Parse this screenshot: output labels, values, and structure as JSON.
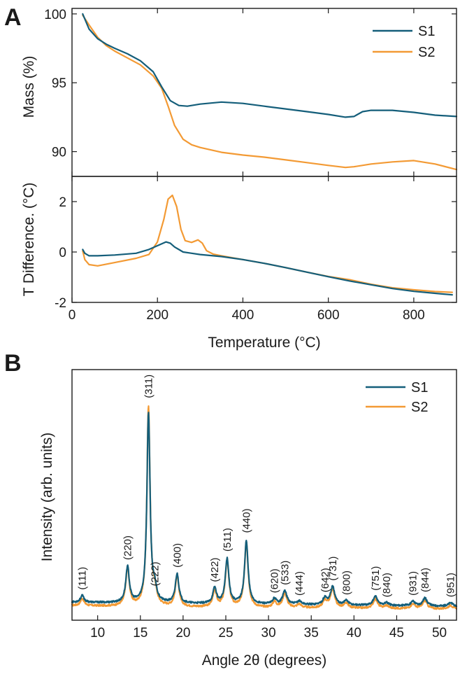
{
  "colors": {
    "S1": "#145e7a",
    "S2": "#f39a34",
    "axis": "#1a1a1a"
  },
  "chart_data": [
    {
      "panel": "A",
      "type": "line",
      "title": "",
      "xlabel": "",
      "ylabel": "Mass (%)",
      "xlim": [
        0,
        900
      ],
      "ylim": [
        88.2,
        100.4
      ],
      "xticks": [
        0,
        200,
        400,
        600,
        800
      ],
      "yticks": [
        90,
        95,
        100
      ],
      "ytick_labels": [
        "90",
        "95",
        "100"
      ],
      "legend": {
        "position": "top-right",
        "entries": [
          "S1",
          "S2"
        ]
      },
      "series": [
        {
          "name": "S1",
          "color": "#145e7a",
          "x": [
            25,
            40,
            60,
            80,
            100,
            130,
            160,
            190,
            210,
            230,
            250,
            270,
            300,
            350,
            400,
            450,
            500,
            550,
            600,
            640,
            660,
            680,
            700,
            750,
            800,
            850,
            900
          ],
          "y": [
            100,
            98.9,
            98.2,
            97.8,
            97.5,
            97.1,
            96.6,
            95.8,
            94.7,
            93.7,
            93.35,
            93.3,
            93.45,
            93.6,
            93.5,
            93.3,
            93.1,
            92.9,
            92.7,
            92.5,
            92.55,
            92.9,
            93.0,
            93.0,
            92.85,
            92.65,
            92.55
          ]
        },
        {
          "name": "S2",
          "color": "#f39a34",
          "x": [
            25,
            40,
            60,
            80,
            100,
            130,
            160,
            190,
            210,
            225,
            240,
            260,
            280,
            300,
            350,
            400,
            450,
            500,
            550,
            600,
            640,
            660,
            700,
            750,
            800,
            850,
            900
          ],
          "y": [
            99.9,
            99.2,
            98.3,
            97.7,
            97.3,
            96.8,
            96.3,
            95.5,
            94.6,
            93.3,
            91.9,
            90.9,
            90.5,
            90.3,
            89.95,
            89.75,
            89.6,
            89.4,
            89.2,
            89.0,
            88.85,
            88.9,
            89.1,
            89.25,
            89.35,
            89.1,
            88.7
          ]
        }
      ]
    },
    {
      "panel": "A",
      "type": "line",
      "title": "",
      "xlabel": "Temperature (°C)",
      "ylabel": "T Difference. (°C)",
      "xlim": [
        0,
        900
      ],
      "ylim": [
        -2,
        3
      ],
      "xticks": [
        0,
        200,
        400,
        600,
        800
      ],
      "xtick_labels": [
        "0",
        "200",
        "400",
        "600",
        "800"
      ],
      "yticks": [
        -2,
        0,
        2
      ],
      "ytick_labels": [
        "-2",
        "0",
        "2"
      ],
      "series": [
        {
          "name": "S1",
          "color": "#145e7a",
          "x": [
            25,
            30,
            40,
            60,
            100,
            150,
            180,
            200,
            220,
            230,
            240,
            260,
            280,
            300,
            350,
            400,
            450,
            500,
            550,
            600,
            650,
            700,
            750,
            800,
            850,
            890
          ],
          "y": [
            0.1,
            -0.05,
            -0.15,
            -0.15,
            -0.12,
            -0.05,
            0.1,
            0.25,
            0.4,
            0.35,
            0.2,
            0.0,
            -0.05,
            -0.1,
            -0.18,
            -0.3,
            -0.45,
            -0.62,
            -0.8,
            -0.98,
            -1.15,
            -1.3,
            -1.45,
            -1.56,
            -1.64,
            -1.7
          ]
        },
        {
          "name": "S2",
          "color": "#f39a34",
          "x": [
            25,
            30,
            40,
            60,
            100,
            150,
            180,
            200,
            215,
            225,
            235,
            245,
            255,
            265,
            280,
            295,
            305,
            315,
            330,
            350,
            400,
            450,
            500,
            550,
            600,
            650,
            700,
            750,
            800,
            850,
            890
          ],
          "y": [
            0.05,
            -0.3,
            -0.5,
            -0.55,
            -0.42,
            -0.25,
            -0.1,
            0.4,
            1.3,
            2.1,
            2.25,
            1.8,
            0.9,
            0.45,
            0.38,
            0.48,
            0.35,
            0.05,
            -0.08,
            -0.15,
            -0.3,
            -0.45,
            -0.62,
            -0.8,
            -0.97,
            -1.1,
            -1.28,
            -1.42,
            -1.5,
            -1.57,
            -1.6
          ]
        }
      ]
    },
    {
      "panel": "B",
      "type": "line",
      "title": "",
      "xlabel": "Angle 2θ (degrees)",
      "ylabel": "Intensity (arb. units)",
      "xlim": [
        7,
        52
      ],
      "ylim": [
        0,
        1.12
      ],
      "xticks": [
        10,
        15,
        20,
        25,
        30,
        35,
        40,
        45,
        50
      ],
      "xtick_labels": [
        "10",
        "15",
        "20",
        "25",
        "30",
        "35",
        "40",
        "45",
        "50"
      ],
      "legend": {
        "position": "top-right",
        "entries": [
          "S1",
          "S2"
        ]
      },
      "baseline": {
        "S1": [
          [
            7,
            0.08
          ],
          [
            15,
            0.075
          ],
          [
            30,
            0.07
          ],
          [
            52,
            0.062
          ]
        ],
        "S2": [
          [
            7,
            0.065
          ],
          [
            15,
            0.06
          ],
          [
            30,
            0.055
          ],
          [
            52,
            0.05
          ]
        ]
      },
      "peaks": [
        {
          "pos": 8.2,
          "height": 0.03,
          "width": 0.25,
          "label": "(111)"
        },
        {
          "pos": 13.5,
          "height": 0.16,
          "width": 0.25,
          "label": "(220)"
        },
        {
          "pos": 15.95,
          "height": 0.85,
          "width": 0.22,
          "label": "(311)"
        },
        {
          "pos": 16.7,
          "height": 0.05,
          "width": 0.25,
          "label": "(222)"
        },
        {
          "pos": 19.3,
          "height": 0.13,
          "width": 0.25,
          "label": "(400)"
        },
        {
          "pos": 23.7,
          "height": 0.07,
          "width": 0.25,
          "label": "(422)"
        },
        {
          "pos": 25.15,
          "height": 0.2,
          "width": 0.25,
          "label": "(511)"
        },
        {
          "pos": 27.4,
          "height": 0.28,
          "width": 0.25,
          "label": "(440)"
        },
        {
          "pos": 30.7,
          "height": 0.025,
          "width": 0.25,
          "label": "(620)"
        },
        {
          "pos": 31.9,
          "height": 0.06,
          "width": 0.3,
          "label": "(533)"
        },
        {
          "pos": 33.6,
          "height": 0.015,
          "width": 0.3,
          "label": "(444)"
        },
        {
          "pos": 36.6,
          "height": 0.03,
          "width": 0.3,
          "label": "(642)"
        },
        {
          "pos": 37.5,
          "height": 0.08,
          "width": 0.3,
          "label": "(731)"
        },
        {
          "pos": 39.1,
          "height": 0.02,
          "width": 0.3,
          "label": "(800)"
        },
        {
          "pos": 42.5,
          "height": 0.04,
          "width": 0.3,
          "label": "(751)"
        },
        {
          "pos": 43.8,
          "height": 0.012,
          "width": 0.3,
          "label": "(840)"
        },
        {
          "pos": 46.9,
          "height": 0.02,
          "width": 0.3,
          "label": "(931)"
        },
        {
          "pos": 48.3,
          "height": 0.035,
          "width": 0.3,
          "label": "(844)"
        },
        {
          "pos": 51.3,
          "height": 0.015,
          "width": 0.3,
          "label": "(951)"
        }
      ],
      "series_scale": {
        "S1": 1.0,
        "S2": 1.05
      }
    }
  ],
  "panel_labels": {
    "a": "A",
    "b": "B"
  }
}
